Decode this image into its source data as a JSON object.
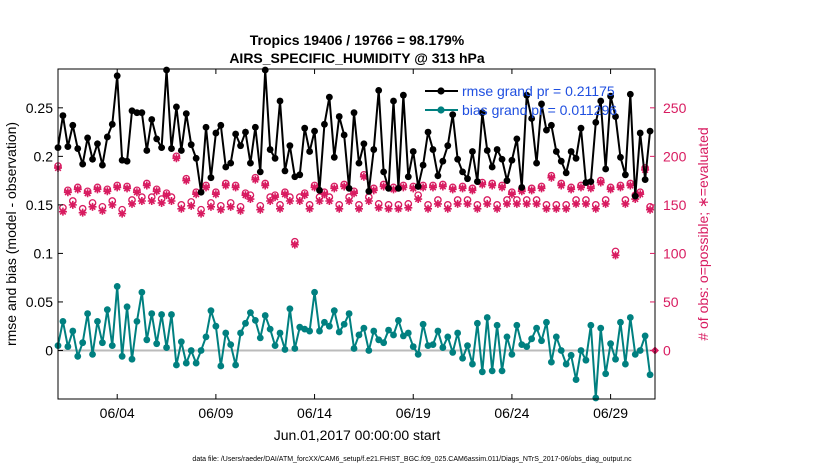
{
  "chart_data": {
    "type": "line",
    "title_line1": "Tropics 19406 / 19766 = 98.179%",
    "title_line2": "AIRS_SPECIFIC_HUMIDITY @ 313 hPa",
    "xlabel": "Jun.01,2017 00:00:00 start",
    "ylabel_left": "rmse and bias (model - observation)",
    "ylabel_right": "# of obs: o=possible; ∗=evaluated",
    "footnote": "data file: /Users/raeder/DAI/ATM_forcXX/CAM6_setup/f.e21.FHIST_BGC.f09_025.CAM6assim.011/Diags_NTrS_2017-06/obs_diag_output.nc",
    "x_ticks": [
      "06/04",
      "06/09",
      "06/14",
      "06/19",
      "06/24",
      "06/29"
    ],
    "x_tick_days": [
      4,
      9,
      14,
      19,
      24,
      29
    ],
    "xlim_days": [
      1.0,
      31.25
    ],
    "y_left_ticks": [
      "0",
      "0.05",
      "0.1",
      "0.15",
      "0.2",
      "0.25"
    ],
    "y_left_tick_values": [
      0,
      0.05,
      0.1,
      0.15,
      0.2,
      0.25
    ],
    "ylim_left": [
      -0.05,
      0.29
    ],
    "y_right_ticks": [
      "0",
      "50",
      "100",
      "150",
      "200",
      "250"
    ],
    "y_right_tick_values": [
      0,
      50,
      100,
      150,
      200,
      250
    ],
    "ylim_right": [
      -50,
      290
    ],
    "colors": {
      "rmse": "#000000",
      "bias": "#008080",
      "obs": "#d81b60",
      "zero_line": "#bbbbbb",
      "legend_text": "#1f4fe0"
    },
    "series": [
      {
        "name": "rmse",
        "legend_label": "rmse grand pr = 0.21175",
        "x": [
          1.0,
          1.25,
          1.5,
          1.75,
          2.0,
          2.25,
          2.5,
          2.75,
          3.0,
          3.25,
          3.5,
          3.75,
          4.0,
          4.25,
          4.5,
          4.75,
          5.0,
          5.25,
          5.5,
          5.75,
          6.0,
          6.25,
          6.5,
          6.75,
          7.0,
          7.25,
          7.5,
          7.75,
          8.0,
          8.25,
          8.5,
          8.75,
          9.0,
          9.25,
          9.5,
          9.75,
          10.0,
          10.25,
          10.5,
          10.75,
          11.0,
          11.25,
          11.5,
          11.75,
          12.0,
          12.25,
          12.5,
          12.75,
          13.0,
          13.25,
          13.5,
          13.75,
          14.0,
          14.25,
          14.5,
          14.75,
          15.0,
          15.25,
          15.5,
          15.75,
          16.0,
          16.25,
          16.5,
          16.75,
          17.0,
          17.25,
          17.5,
          17.75,
          18.0,
          18.25,
          18.5,
          18.75,
          19.0,
          19.25,
          19.5,
          19.75,
          20.0,
          20.25,
          20.5,
          20.75,
          21.0,
          21.25,
          21.5,
          21.75,
          22.0,
          22.25,
          22.5,
          22.75,
          23.0,
          23.25,
          23.5,
          23.75,
          24.0,
          24.25,
          24.5,
          24.75,
          25.0,
          25.25,
          25.5,
          25.75,
          26.0,
          26.25,
          26.5,
          26.75,
          27.0,
          27.25,
          27.5,
          27.75,
          28.0,
          28.25,
          28.5,
          28.75,
          29.0,
          29.25,
          29.5,
          29.75,
          30.0,
          30.25,
          30.5,
          30.75,
          31.0
        ],
        "values": [
          0.209,
          0.242,
          0.21,
          0.232,
          0.208,
          0.192,
          0.219,
          0.197,
          0.213,
          0.191,
          0.22,
          0.233,
          0.283,
          0.196,
          0.195,
          0.247,
          0.245,
          0.245,
          0.206,
          0.238,
          0.218,
          0.209,
          0.289,
          0.208,
          0.251,
          0.206,
          0.244,
          0.212,
          0.198,
          0.163,
          0.23,
          0.178,
          0.224,
          0.232,
          0.189,
          0.193,
          0.223,
          0.211,
          0.225,
          0.193,
          0.23,
          0.184,
          0.289,
          0.207,
          0.198,
          0.257,
          0.185,
          0.211,
          0.179,
          0.181,
          0.229,
          0.205,
          0.226,
          0.165,
          0.233,
          0.261,
          0.199,
          0.241,
          0.222,
          0.167,
          0.245,
          0.193,
          0.213,
          0.164,
          0.207,
          0.268,
          0.184,
          0.167,
          0.257,
          0.167,
          0.263,
          0.179,
          0.205,
          0.169,
          0.191,
          0.225,
          0.207,
          0.18,
          0.195,
          0.211,
          0.243,
          0.197,
          0.184,
          0.177,
          0.205,
          0.174,
          0.245,
          0.206,
          0.189,
          0.207,
          0.197,
          0.175,
          0.196,
          0.218,
          0.168,
          0.263,
          0.239,
          0.193,
          0.254,
          0.227,
          0.232,
          0.205,
          0.195,
          0.183,
          0.205,
          0.198,
          0.229,
          0.173,
          0.174,
          0.235,
          0.257,
          0.187,
          0.262,
          0.241,
          0.199,
          0.181,
          0.264,
          0.159,
          0.224,
          0.176,
          0.226
        ]
      },
      {
        "name": "bias",
        "legend_label": "bias grand pr = 0.011296",
        "x": [
          1.0,
          1.25,
          1.5,
          1.75,
          2.0,
          2.25,
          2.5,
          2.75,
          3.0,
          3.25,
          3.5,
          3.75,
          4.0,
          4.25,
          4.5,
          4.75,
          5.0,
          5.25,
          5.5,
          5.75,
          6.0,
          6.25,
          6.5,
          6.75,
          7.0,
          7.25,
          7.5,
          7.75,
          8.0,
          8.25,
          8.5,
          8.75,
          9.0,
          9.25,
          9.5,
          9.75,
          10.0,
          10.25,
          10.5,
          10.75,
          11.0,
          11.25,
          11.5,
          11.75,
          12.0,
          12.25,
          12.5,
          12.75,
          13.0,
          13.25,
          13.5,
          13.75,
          14.0,
          14.25,
          14.5,
          14.75,
          15.0,
          15.25,
          15.5,
          15.75,
          16.0,
          16.25,
          16.5,
          16.75,
          17.0,
          17.25,
          17.5,
          17.75,
          18.0,
          18.25,
          18.5,
          18.75,
          19.0,
          19.25,
          19.5,
          19.75,
          20.0,
          20.25,
          20.5,
          20.75,
          21.0,
          21.25,
          21.5,
          21.75,
          22.0,
          22.25,
          22.5,
          22.75,
          23.0,
          23.25,
          23.5,
          23.75,
          24.0,
          24.25,
          24.5,
          24.75,
          25.0,
          25.25,
          25.5,
          25.75,
          26.0,
          26.25,
          26.5,
          26.75,
          27.0,
          27.25,
          27.5,
          27.75,
          28.0,
          28.25,
          28.5,
          28.75,
          29.0,
          29.25,
          29.5,
          29.75,
          30.0,
          30.25,
          30.5,
          30.75,
          31.0
        ],
        "values": [
          0.005,
          0.03,
          0.004,
          0.02,
          -0.006,
          0.008,
          0.038,
          -0.004,
          0.03,
          0.008,
          0.042,
          0.005,
          0.066,
          -0.006,
          0.045,
          -0.009,
          0.03,
          0.06,
          0.011,
          0.038,
          0.007,
          0.037,
          0.003,
          0.037,
          -0.015,
          0.009,
          -0.013,
          0.0,
          -0.013,
          0.0,
          0.014,
          0.041,
          0.025,
          -0.016,
          0.018,
          0.006,
          -0.015,
          0.018,
          0.028,
          0.039,
          0.031,
          0.013,
          0.036,
          0.022,
          0.005,
          0.018,
          0.001,
          0.043,
          0.002,
          0.024,
          0.022,
          0.02,
          0.06,
          0.02,
          0.029,
          0.025,
          0.041,
          0.019,
          0.027,
          0.038,
          0.002,
          0.016,
          0.023,
          0.0,
          0.02,
          0.011,
          0.008,
          0.021,
          0.016,
          0.031,
          0.015,
          0.018,
          0.004,
          -0.004,
          0.027,
          0.005,
          0.006,
          0.02,
          0.003,
          0.014,
          -0.002,
          0.018,
          -0.008,
          0.005,
          -0.014,
          0.028,
          -0.022,
          0.034,
          -0.021,
          0.026,
          -0.021,
          0.014,
          -0.004,
          0.026,
          0.006,
          0.004,
          0.012,
          0.023,
          0.01,
          0.029,
          -0.012,
          0.014,
          0.0,
          -0.014,
          -0.005,
          -0.03,
          0.0,
          -0.01,
          0.026,
          -0.049,
          0.023,
          -0.024,
          0.007,
          -0.009,
          0.029,
          -0.014,
          0.034,
          -0.004,
          0.0,
          0.015,
          -0.025
        ]
      },
      {
        "name": "obs_possible",
        "marker": "circle",
        "x": [
          1.0,
          1.25,
          1.5,
          1.75,
          2.0,
          2.25,
          2.5,
          2.75,
          3.0,
          3.25,
          3.5,
          3.75,
          4.0,
          4.25,
          4.5,
          4.75,
          5.0,
          5.25,
          5.5,
          5.75,
          6.0,
          6.25,
          6.5,
          6.75,
          7.0,
          7.25,
          7.5,
          7.75,
          8.0,
          8.25,
          8.5,
          8.75,
          9.0,
          9.25,
          9.5,
          9.75,
          10.0,
          10.25,
          10.5,
          10.75,
          11.0,
          11.25,
          11.5,
          11.75,
          12.0,
          12.25,
          12.5,
          12.75,
          13.0,
          13.25,
          13.5,
          13.75,
          14.0,
          14.25,
          14.5,
          14.75,
          15.0,
          15.25,
          15.5,
          15.75,
          16.0,
          16.25,
          16.5,
          16.75,
          17.0,
          17.25,
          17.5,
          17.75,
          18.0,
          18.25,
          18.5,
          18.75,
          19.0,
          19.25,
          19.5,
          19.75,
          20.0,
          20.25,
          20.5,
          20.75,
          21.0,
          21.25,
          21.5,
          21.75,
          22.0,
          22.25,
          22.5,
          22.75,
          23.0,
          23.25,
          23.5,
          23.75,
          24.0,
          24.25,
          24.5,
          24.75,
          25.0,
          25.25,
          25.5,
          25.75,
          26.0,
          26.25,
          26.5,
          26.75,
          27.0,
          27.25,
          27.5,
          27.75,
          28.0,
          28.25,
          28.5,
          28.75,
          29.0,
          29.25,
          29.5,
          29.75,
          30.0,
          30.25,
          30.5,
          30.75,
          31.0
        ],
        "values": [
          190,
          147,
          165,
          154,
          168,
          146,
          164,
          152,
          168,
          148,
          166,
          154,
          170,
          145,
          169,
          155,
          165,
          158,
          172,
          158,
          166,
          156,
          162,
          158,
          200,
          150,
          177,
          153,
          163,
          145,
          170,
          152,
          163,
          149,
          172,
          152,
          170,
          148,
          162,
          160,
          178,
          149,
          172,
          158,
          160,
          150,
          163,
          158,
          112,
          158,
          162,
          150,
          170,
          158,
          163,
          158,
          169,
          150,
          171,
          158,
          164,
          150,
          181,
          158,
          167,
          151,
          171,
          150,
          168,
          150,
          170,
          151,
          169,
          160,
          170,
          150,
          170,
          155,
          171,
          150,
          168,
          155,
          169,
          155,
          167,
          150,
          173,
          155,
          172,
          150,
          170,
          155,
          163,
          155,
          166,
          155,
          167,
          155,
          169,
          150,
          180,
          150,
          172,
          150,
          168,
          155,
          170,
          155,
          169,
          150,
          175,
          155,
          168,
          102,
          170,
          155,
          172,
          160,
          163,
          188,
          148
        ]
      },
      {
        "name": "obs_evaluated",
        "marker": "asterisk",
        "x": [
          1.0,
          1.25,
          1.5,
          1.75,
          2.0,
          2.25,
          2.5,
          2.75,
          3.0,
          3.25,
          3.5,
          3.75,
          4.0,
          4.25,
          4.5,
          4.75,
          5.0,
          5.25,
          5.5,
          5.75,
          6.0,
          6.25,
          6.5,
          6.75,
          7.0,
          7.25,
          7.5,
          7.75,
          8.0,
          8.25,
          8.5,
          8.75,
          9.0,
          9.25,
          9.5,
          9.75,
          10.0,
          10.25,
          10.5,
          10.75,
          11.0,
          11.25,
          11.5,
          11.75,
          12.0,
          12.25,
          12.5,
          12.75,
          13.0,
          13.25,
          13.5,
          13.75,
          14.0,
          14.25,
          14.5,
          14.75,
          15.0,
          15.25,
          15.5,
          15.75,
          16.0,
          16.25,
          16.5,
          16.75,
          17.0,
          17.25,
          17.5,
          17.75,
          18.0,
          18.25,
          18.5,
          18.75,
          19.0,
          19.25,
          19.5,
          19.75,
          20.0,
          20.25,
          20.5,
          20.75,
          21.0,
          21.25,
          21.5,
          21.75,
          22.0,
          22.25,
          22.5,
          22.75,
          23.0,
          23.25,
          23.5,
          23.75,
          24.0,
          24.25,
          24.5,
          24.75,
          25.0,
          25.25,
          25.5,
          25.75,
          26.0,
          26.25,
          26.5,
          26.75,
          27.0,
          27.25,
          27.5,
          27.75,
          28.0,
          28.25,
          28.5,
          28.75,
          29.0,
          29.25,
          29.5,
          29.75,
          30.0,
          30.25,
          30.5,
          30.75,
          31.0
        ],
        "values": [
          188,
          143,
          163,
          150,
          166,
          142,
          162,
          148,
          166,
          144,
          164,
          150,
          168,
          141,
          167,
          151,
          163,
          154,
          170,
          154,
          164,
          152,
          160,
          154,
          198,
          146,
          175,
          149,
          161,
          141,
          168,
          148,
          161,
          145,
          170,
          148,
          168,
          144,
          160,
          156,
          176,
          145,
          170,
          154,
          158,
          146,
          161,
          154,
          109,
          154,
          160,
          146,
          168,
          154,
          161,
          154,
          167,
          146,
          169,
          154,
          162,
          146,
          179,
          154,
          165,
          147,
          169,
          146,
          166,
          146,
          168,
          147,
          167,
          156,
          168,
          146,
          168,
          151,
          169,
          146,
          166,
          151,
          167,
          151,
          165,
          146,
          171,
          151,
          170,
          146,
          168,
          151,
          161,
          151,
          164,
          151,
          165,
          151,
          167,
          146,
          178,
          146,
          170,
          146,
          166,
          151,
          168,
          151,
          167,
          146,
          173,
          151,
          166,
          98,
          168,
          151,
          170,
          156,
          161,
          186,
          145
        ]
      }
    ],
    "final_obs_marker": {
      "x": 31.25,
      "value": 0
    }
  }
}
